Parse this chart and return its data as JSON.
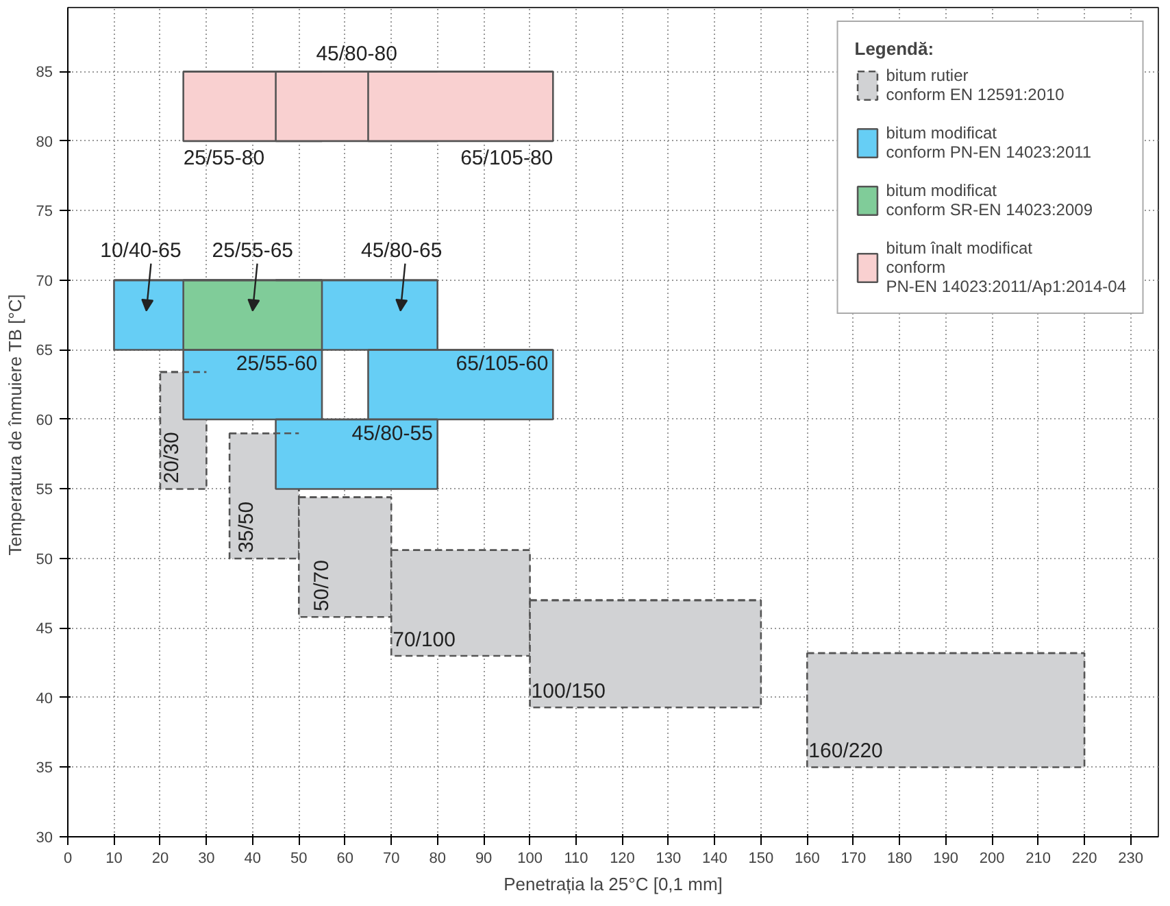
{
  "chart_data": {
    "type": "bar",
    "xlabel": "Penetrația la 25°C [0,1 mm]",
    "ylabel": "Temperatura de înmuiere TB  [°C]",
    "legend_title": "Legendă:",
    "legend": "top right",
    "grid": true,
    "xlim": [
      0,
      236
    ],
    "ylim": [
      30,
      89.6
    ],
    "xticks": [
      0,
      10,
      20,
      30,
      40,
      50,
      60,
      70,
      80,
      90,
      100,
      110,
      120,
      130,
      140,
      150,
      160,
      170,
      180,
      190,
      200,
      210,
      220,
      230
    ],
    "yticks": [
      30,
      35,
      40,
      45,
      50,
      55,
      60,
      65,
      70,
      75,
      80,
      85
    ],
    "series": [
      {
        "name": "bitum rutier\nconform EN 12591:2010",
        "color": "#d1d2d4",
        "line_style": "dashed",
        "x": [
          25,
          42.5,
          60,
          85,
          125,
          190
        ],
        "xerrors": [
          [
            20,
            30
          ],
          [
            35,
            50
          ],
          [
            50,
            70
          ],
          [
            70,
            100
          ],
          [
            100,
            150
          ],
          [
            160,
            220
          ]
        ],
        "base": [
          55,
          50,
          45.8,
          43,
          39.3,
          35
        ],
        "values": [
          8.4,
          9,
          8.6,
          7.6,
          7.7,
          8.2
        ],
        "value_labels": [
          "20/30",
          "35/50",
          "50/70",
          "70/100",
          "100/150",
          "160/220"
        ]
      },
      {
        "name": "bitum modificat\nconform PN-EN 14023:2011",
        "color": "#66cef5",
        "line_style": "solid",
        "x": [
          25,
          40,
          62.5,
          85
        ],
        "xerrors": [
          [
            10,
            40
          ],
          [
            25,
            55
          ],
          [
            45,
            80
          ],
          [
            65,
            105
          ]
        ],
        "base": [
          65,
          60,
          65,
          60
        ],
        "values": [
          5,
          5,
          5,
          5
        ],
        "value_labels": [
          "10/40-65",
          "25/55-60",
          "45/80-65",
          "65/105-60"
        ]
      },
      {
        "color": "#66cef5",
        "line_style": "solid",
        "x": [
          62.5
        ],
        "xerrors": [
          [
            45,
            80
          ]
        ],
        "base": [
          55
        ],
        "values": [
          5
        ],
        "value_labels": [
          "45/80-55"
        ]
      },
      {
        "name": "bitum modificat\nconform SR-EN 14023:2009",
        "color": "#80cc99",
        "line_style": "solid",
        "x": [
          40
        ],
        "xerrors": [
          [
            25,
            55
          ]
        ],
        "base": [
          65
        ],
        "values": [
          5
        ],
        "value_labels": [
          "25/55-65"
        ]
      },
      {
        "name": "bitum înalt modificat\nconform\nPN-EN 14023:2011/Ap1:2014-04",
        "color": "#f9d0d0",
        "line_style": "solid",
        "x": [
          40,
          62.5,
          85
        ],
        "xerrors": [
          [
            25,
            55
          ],
          [
            45,
            80
          ],
          [
            65,
            105
          ]
        ],
        "base": [
          80,
          80,
          80
        ],
        "values": [
          5,
          5,
          5
        ],
        "value_labels": [
          "25/55-80",
          "45/80-80",
          "65/105-80"
        ]
      }
    ]
  }
}
